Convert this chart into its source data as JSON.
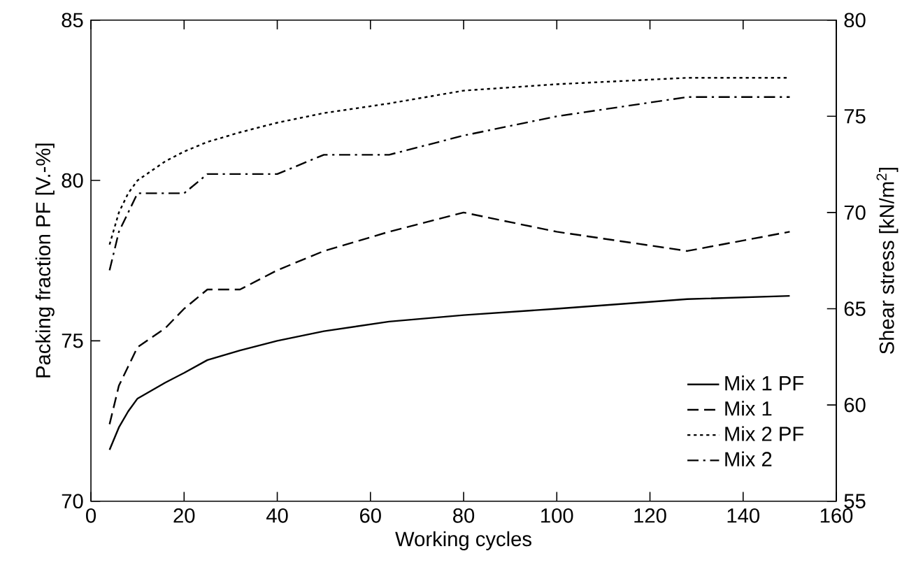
{
  "chart_data": {
    "type": "line",
    "xlabel": "Working cycles",
    "ylabel": "Packing fraction PF [V.-%]",
    "y2label": "Shear stress  [kN/m$^{2}$]",
    "x": [
      4,
      6,
      8,
      10,
      16,
      20,
      25,
      32,
      40,
      50,
      64,
      80,
      100,
      128,
      150
    ],
    "xlim": [
      0,
      160
    ],
    "xticks": [
      0,
      20,
      40,
      60,
      80,
      100,
      120,
      140,
      160
    ],
    "ylim": [
      70,
      85
    ],
    "yticks": [
      70,
      75,
      80,
      85
    ],
    "y2lim": [
      55,
      80
    ],
    "y2ticks": [
      55,
      60,
      65,
      70,
      75,
      80
    ],
    "legend": "bottom right",
    "grid": false,
    "marker": "none",
    "series": [
      {
        "name": "Mix 1 PF",
        "color": "#000000",
        "line_style": "solid",
        "values": [
          71.6,
          72.3,
          72.8,
          73.2,
          73.7,
          74.0,
          74.4,
          74.7,
          75.0,
          75.3,
          75.6,
          75.8,
          76.0,
          76.3,
          76.4
        ]
      },
      {
        "name": "Mix 1",
        "color": "#000000",
        "line_style": "dashed",
        "axis": "y2",
        "values": [
          59,
          61,
          62,
          63,
          64,
          65,
          66,
          66,
          67,
          68,
          69,
          70,
          69,
          68,
          69
        ]
      },
      {
        "name": "Mix 2 PF",
        "color": "#000000",
        "line_style": "dotted",
        "values": [
          78.0,
          79.0,
          79.6,
          80.0,
          80.6,
          80.9,
          81.2,
          81.5,
          81.8,
          82.1,
          82.4,
          82.8,
          83.0,
          83.2,
          83.2
        ]
      },
      {
        "name": "Mix 2",
        "color": "#000000",
        "line_style": "dashdot",
        "axis": "y2",
        "values": [
          67,
          69,
          70,
          71,
          71,
          71,
          72,
          72,
          72,
          73,
          73,
          74,
          75,
          76,
          76
        ]
      }
    ]
  }
}
